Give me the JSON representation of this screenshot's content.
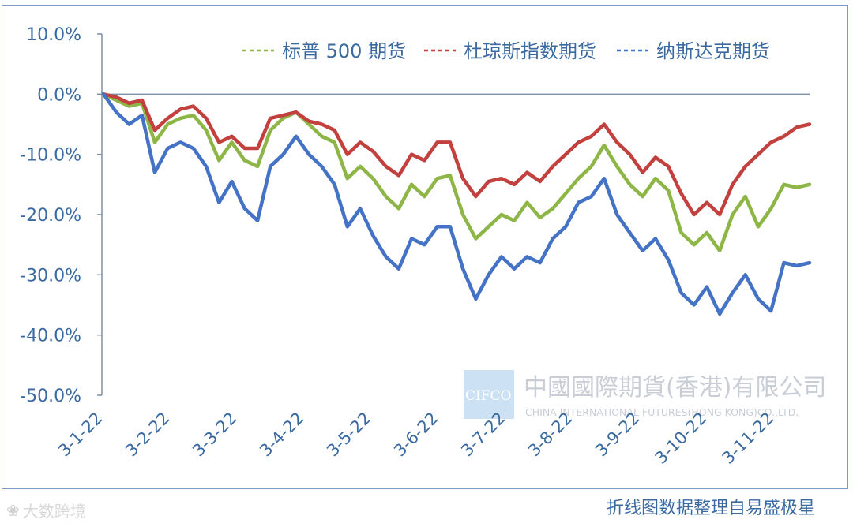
{
  "chart_data": {
    "type": "line",
    "title": "",
    "xlabel": "",
    "ylabel": "",
    "ylim": [
      -50,
      10
    ],
    "y_ticks": [
      "10.0%",
      "0.0%",
      "-10.0%",
      "-20.0%",
      "-30.0%",
      "-40.0%",
      "-50.0%"
    ],
    "x_ticks": [
      "3-1-22",
      "3-2-22",
      "3-3-22",
      "3-4-22",
      "3-5-22",
      "3-6-22",
      "3-7-22",
      "3-8-22",
      "3-9-22",
      "3-10-22",
      "3-11-22"
    ],
    "legend_position": "top",
    "grid": false,
    "series": [
      {
        "name": "标普 500 期货",
        "color": "#8db646",
        "values": [
          0.0,
          -1.0,
          -2.0,
          -1.5,
          -8.0,
          -5.0,
          -4.0,
          -3.5,
          -6.0,
          -11.0,
          -8.0,
          -11.0,
          -12.0,
          -6.0,
          -4.0,
          -3.0,
          -5.0,
          -7.0,
          -8.0,
          -14.0,
          -12.0,
          -14.0,
          -17.0,
          -19.0,
          -15.0,
          -17.0,
          -14.0,
          -13.5,
          -20.0,
          -24.0,
          -22.0,
          -20.0,
          -21.0,
          -18.0,
          -20.5,
          -19.0,
          -16.5,
          -14.0,
          -12.0,
          -8.5,
          -12.0,
          -15.0,
          -17.0,
          -14.0,
          -16.0,
          -23.0,
          -25.0,
          -23.0,
          -26.0,
          -20.0,
          -17.0,
          -22.0,
          -19.0,
          -15.0,
          -15.5,
          -15.0
        ]
      },
      {
        "name": "杜琼斯指数期货",
        "color": "#c2403d",
        "values": [
          0.0,
          -0.5,
          -1.5,
          -1.0,
          -6.0,
          -4.0,
          -2.5,
          -2.0,
          -4.0,
          -8.0,
          -7.0,
          -9.0,
          -9.0,
          -4.0,
          -3.5,
          -3.0,
          -4.5,
          -5.0,
          -6.0,
          -10.0,
          -8.0,
          -9.5,
          -12.0,
          -13.5,
          -10.0,
          -11.0,
          -8.0,
          -8.0,
          -14.0,
          -17.0,
          -14.5,
          -14.0,
          -15.0,
          -13.0,
          -14.5,
          -12.0,
          -10.0,
          -8.0,
          -7.0,
          -5.0,
          -8.0,
          -10.0,
          -13.0,
          -10.5,
          -12.0,
          -16.5,
          -20.0,
          -18.0,
          -20.0,
          -15.0,
          -12.0,
          -10.0,
          -8.0,
          -7.0,
          -5.5,
          -5.0
        ]
      },
      {
        "name": "纳斯达克期货",
        "color": "#4472c4",
        "values": [
          0.0,
          -3.0,
          -5.0,
          -3.5,
          -13.0,
          -9.0,
          -8.0,
          -9.0,
          -12.0,
          -18.0,
          -14.5,
          -19.0,
          -21.0,
          -12.0,
          -10.0,
          -7.0,
          -10.0,
          -12.0,
          -15.0,
          -22.0,
          -19.0,
          -23.5,
          -27.0,
          -29.0,
          -24.0,
          -25.0,
          -22.0,
          -22.0,
          -29.0,
          -34.0,
          -30.0,
          -27.0,
          -29.0,
          -27.0,
          -28.0,
          -24.0,
          -22.0,
          -18.0,
          -17.0,
          -14.0,
          -20.0,
          -23.0,
          -26.0,
          -24.0,
          -27.5,
          -33.0,
          -35.0,
          -32.0,
          -36.5,
          -33.0,
          -30.0,
          -34.0,
          -36.0,
          -28.0,
          -28.5,
          -28.0
        ]
      }
    ]
  },
  "watermark": {
    "logo": "CIFCO",
    "name_cn": "中國國際期貨(香港)有限公司",
    "name_en": "CHINA INTERNATIONAL FUTURES(HONG KONG)CO.,LTD."
  },
  "footer": {
    "source": "折线图数据整理自易盛极星",
    "brand": "大数跨境"
  }
}
